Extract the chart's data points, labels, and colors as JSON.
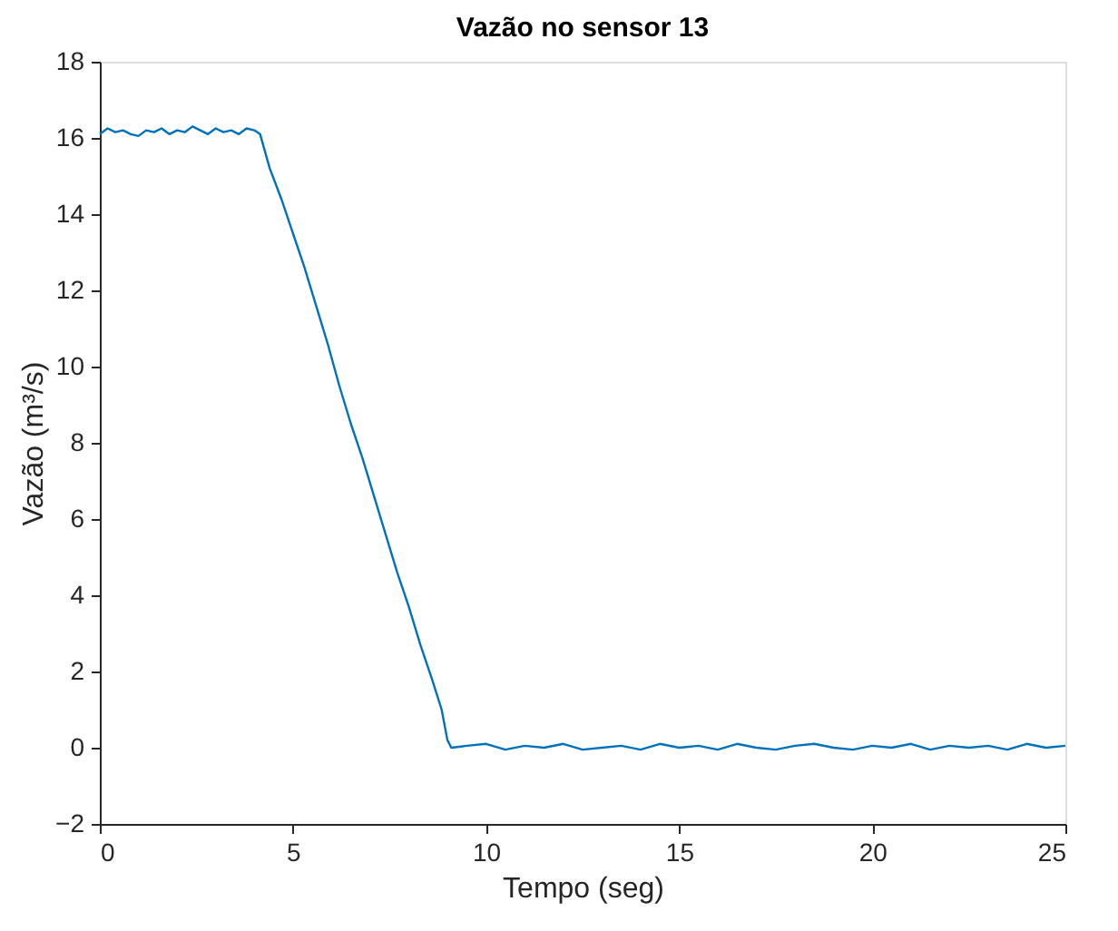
{
  "chart_data": {
    "type": "line",
    "title": "Vazão no sensor 13",
    "xlabel": "Tempo (seg)",
    "ylabel": "Vazão (m³/s)",
    "xlim": [
      0,
      25
    ],
    "ylim": [
      -2,
      18
    ],
    "xticks": [
      0,
      5,
      10,
      15,
      20,
      25
    ],
    "yticks": [
      -2,
      0,
      2,
      4,
      6,
      8,
      10,
      12,
      14,
      16,
      18
    ],
    "grid": false,
    "marker": "none",
    "line_style": "solid",
    "series": [
      {
        "color": "#0072bd",
        "x": [
          0,
          0.2,
          0.4,
          0.6,
          0.8,
          1.0,
          1.2,
          1.4,
          1.6,
          1.8,
          2.0,
          2.2,
          2.4,
          2.6,
          2.8,
          3.0,
          3.2,
          3.4,
          3.6,
          3.8,
          4.0,
          4.15,
          4.4,
          4.7,
          5.0,
          5.3,
          5.6,
          5.9,
          6.2,
          6.5,
          6.8,
          7.1,
          7.4,
          7.7,
          8.0,
          8.3,
          8.6,
          8.85,
          9.0,
          9.1,
          9.5,
          10,
          10.5,
          11,
          11.5,
          12,
          12.5,
          13,
          13.5,
          14,
          14.5,
          15,
          15.5,
          16,
          16.5,
          17,
          17.5,
          18,
          18.5,
          19,
          19.5,
          20,
          20.5,
          21,
          21.5,
          22,
          22.5,
          23,
          23.5,
          24,
          24.5,
          25
        ],
        "values": [
          16.1,
          16.25,
          16.15,
          16.2,
          16.1,
          16.05,
          16.2,
          16.15,
          16.25,
          16.1,
          16.2,
          16.15,
          16.3,
          16.2,
          16.1,
          16.25,
          16.15,
          16.2,
          16.1,
          16.25,
          16.2,
          16.1,
          15.2,
          14.4,
          13.5,
          12.6,
          11.6,
          10.6,
          9.5,
          8.5,
          7.6,
          6.6,
          5.6,
          4.6,
          3.7,
          2.7,
          1.8,
          1.0,
          0.2,
          0.0,
          0.05,
          0.1,
          -0.05,
          0.05,
          0.0,
          0.1,
          -0.05,
          0.0,
          0.05,
          -0.05,
          0.1,
          0.0,
          0.05,
          -0.05,
          0.1,
          0.0,
          -0.05,
          0.05,
          0.1,
          0.0,
          -0.05,
          0.05,
          0.0,
          0.1,
          -0.05,
          0.05,
          0.0,
          0.05,
          -0.05,
          0.1,
          0.0,
          0.05
        ]
      }
    ]
  }
}
